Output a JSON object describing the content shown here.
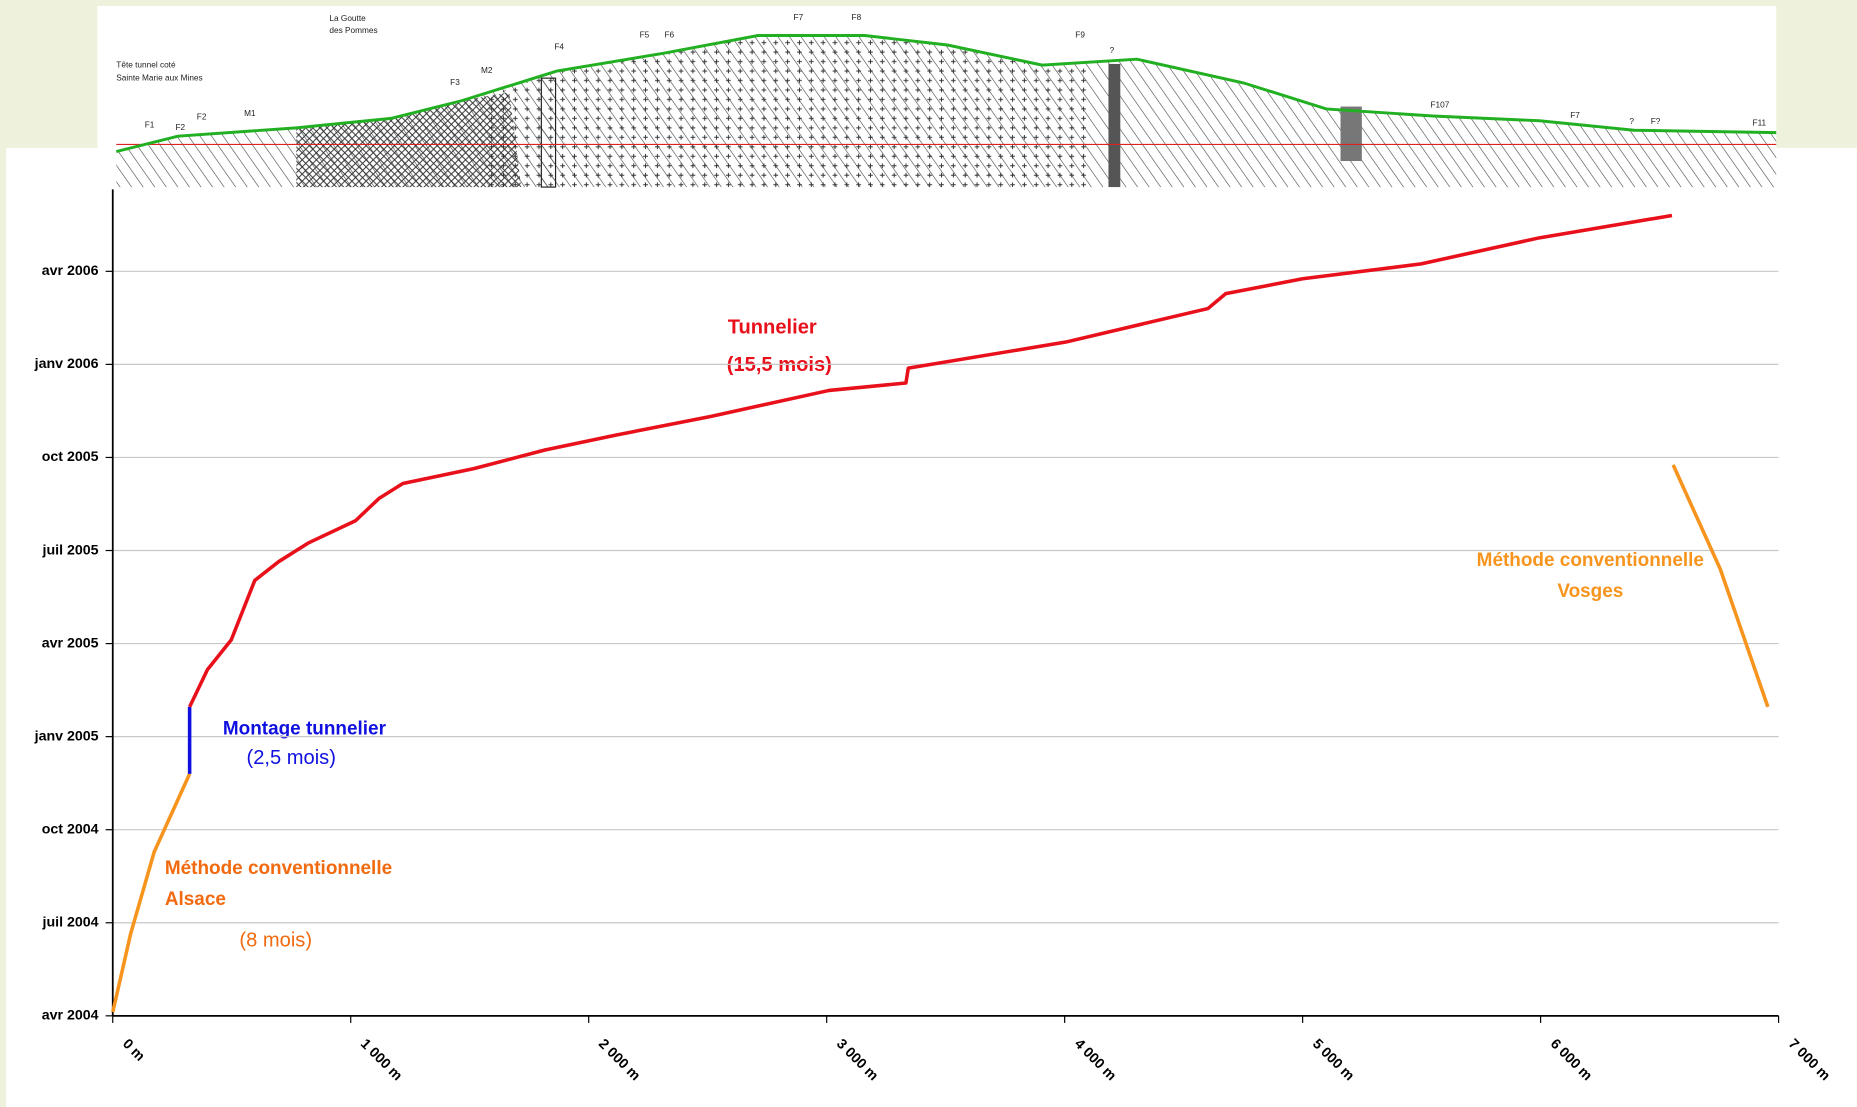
{
  "chart_data": {
    "type": "line",
    "xlim": [
      0,
      7000
    ],
    "xticks": [
      {
        "value": 0,
        "label": "0 m"
      },
      {
        "value": 1000,
        "label": "1 000 m"
      },
      {
        "value": 2000,
        "label": "2 000 m"
      },
      {
        "value": 3000,
        "label": "3 000 m"
      },
      {
        "value": 4000,
        "label": "4 000 m"
      },
      {
        "value": 5000,
        "label": "5 000 m"
      },
      {
        "value": 6000,
        "label": "6 000 m"
      },
      {
        "value": 7000,
        "label": "7 000 m"
      }
    ],
    "ylim": [
      2004.25,
      2006.47
    ],
    "yticks": [
      {
        "value": 2004.25,
        "label": "avr 2004"
      },
      {
        "value": 2004.5,
        "label": "juil 2004"
      },
      {
        "value": 2004.75,
        "label": "oct 2004"
      },
      {
        "value": 2005.0,
        "label": "janv 2005"
      },
      {
        "value": 2005.25,
        "label": "avr 2005"
      },
      {
        "value": 2005.5,
        "label": "juil 2005"
      },
      {
        "value": 2005.75,
        "label": "oct 2005"
      },
      {
        "value": 2006.0,
        "label": "janv 2006"
      },
      {
        "value": 2006.25,
        "label": "avr 2006"
      }
    ],
    "grid": true,
    "series": [
      {
        "color": "#f7941d",
        "x": [
          0,
          75,
          174,
          323
        ],
        "values": [
          2004.26,
          2004.47,
          2004.69,
          2004.9
        ]
      },
      {
        "color": "#1010e0",
        "x": [
          323,
          323
        ],
        "values": [
          2004.9,
          2005.08
        ]
      },
      {
        "color": "#e8101a",
        "x": [
          323,
          398,
          498,
          597,
          697,
          821,
          1020,
          1119,
          1219,
          1517,
          1816,
          2114,
          2512,
          3010,
          3333,
          3343,
          4005,
          4602,
          4677,
          5000,
          5498,
          5995,
          6552
        ],
        "values": [
          2005.08,
          2005.18,
          2005.26,
          2005.42,
          2005.47,
          2005.52,
          2005.58,
          2005.64,
          2005.68,
          2005.72,
          2005.77,
          2005.81,
          2005.86,
          2005.93,
          2005.95,
          2005.99,
          2006.06,
          2006.15,
          2006.19,
          2006.23,
          2006.27,
          2006.34,
          2006.4
        ]
      },
      {
        "color": "#f7941d",
        "x": [
          6557,
          6755,
          6955
        ],
        "values": [
          2005.73,
          2005.45,
          2005.08
        ]
      }
    ],
    "annotations": [
      {
        "text": "Tunnelier",
        "color": "#e8101a"
      },
      {
        "text": "(15,5 mois)",
        "color": "#e8101a"
      },
      {
        "text": "Montage tunnelier",
        "color": "#1010e0"
      },
      {
        "text": "(2,5 mois)",
        "color": "#1010e0"
      },
      {
        "text": "Méthode conventionnelle",
        "color": "#f26a10"
      },
      {
        "text": "Alsace",
        "color": "#f26a10"
      },
      {
        "text": "(8 mois)",
        "color": "#f26a10"
      },
      {
        "text": "Méthode conventionnelle",
        "color": "#f7941d"
      },
      {
        "text": "Vosges",
        "color": "#f7941d"
      }
    ]
  },
  "profile": {
    "labels": [
      "Tête tunnel coté",
      "Sainte Marie aux Mines",
      "La Goutte",
      "des Pommes",
      "F1",
      "F2",
      "F2",
      "M1",
      "F3",
      "M2",
      "F4",
      "F5",
      "F6",
      "F7",
      "F8",
      "F9",
      "?",
      "F107",
      "F7",
      "?",
      "F?",
      "F11"
    ]
  }
}
